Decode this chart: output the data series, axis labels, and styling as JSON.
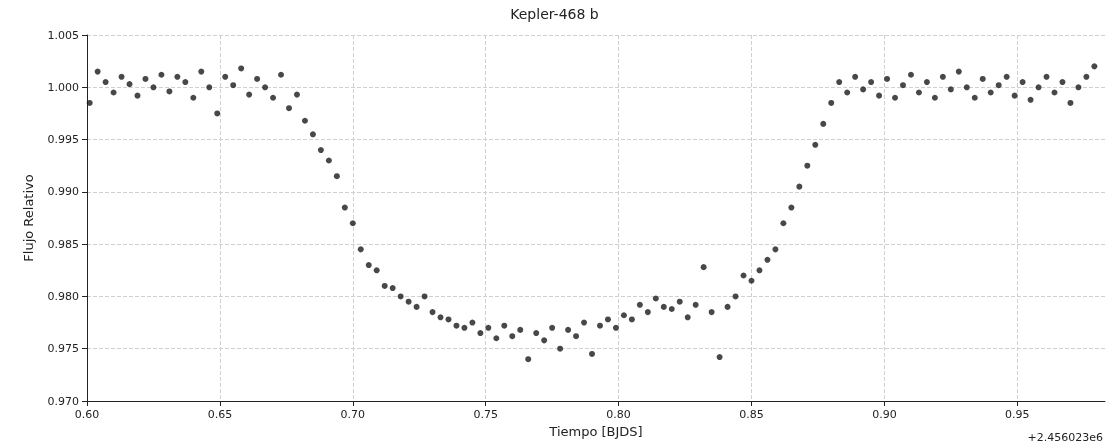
{
  "chart_data": {
    "type": "scatter",
    "title": "Kepler-468 b",
    "xlabel": "Tiempo [BJDS]",
    "ylabel": "Flujo Relativo",
    "annotations": [
      "+2.456023e6"
    ],
    "x": [
      0.601,
      0.604,
      0.607,
      0.61,
      0.613,
      0.616,
      0.619,
      0.622,
      0.625,
      0.628,
      0.631,
      0.634,
      0.637,
      0.64,
      0.643,
      0.646,
      0.649,
      0.652,
      0.655,
      0.658,
      0.661,
      0.664,
      0.667,
      0.67,
      0.673,
      0.676,
      0.679,
      0.682,
      0.685,
      0.688,
      0.691,
      0.694,
      0.697,
      0.7,
      0.703,
      0.706,
      0.709,
      0.712,
      0.715,
      0.718,
      0.721,
      0.724,
      0.727,
      0.73,
      0.733,
      0.736,
      0.739,
      0.742,
      0.745,
      0.748,
      0.751,
      0.754,
      0.757,
      0.76,
      0.763,
      0.766,
      0.769,
      0.772,
      0.775,
      0.778,
      0.781,
      0.784,
      0.787,
      0.79,
      0.793,
      0.796,
      0.799,
      0.802,
      0.805,
      0.808,
      0.811,
      0.814,
      0.817,
      0.82,
      0.823,
      0.826,
      0.829,
      0.832,
      0.835,
      0.838,
      0.841,
      0.844,
      0.847,
      0.85,
      0.853,
      0.856,
      0.859,
      0.862,
      0.865,
      0.868,
      0.871,
      0.874,
      0.877,
      0.88,
      0.883,
      0.886,
      0.889,
      0.892,
      0.895,
      0.898,
      0.901,
      0.904,
      0.907,
      0.91,
      0.913,
      0.916,
      0.919,
      0.922,
      0.925,
      0.928,
      0.931,
      0.934,
      0.937,
      0.94,
      0.943,
      0.946,
      0.949,
      0.952,
      0.955,
      0.958,
      0.961,
      0.964,
      0.967,
      0.97,
      0.973,
      0.976,
      0.979
    ],
    "series": [
      {
        "color": "#1a1a1a",
        "values": [
          0.9985,
          1.0015,
          1.0005,
          0.9995,
          1.001,
          1.0003,
          0.9992,
          1.0008,
          1.0,
          1.0012,
          0.9996,
          1.001,
          1.0005,
          0.999,
          1.0015,
          1.0,
          0.9975,
          1.001,
          1.0002,
          1.0018,
          0.9993,
          1.0008,
          1.0,
          0.999,
          1.0012,
          0.998,
          0.9993,
          0.9968,
          0.9955,
          0.994,
          0.993,
          0.9915,
          0.9885,
          0.987,
          0.9845,
          0.983,
          0.9825,
          0.981,
          0.9808,
          0.98,
          0.9795,
          0.979,
          0.98,
          0.9785,
          0.978,
          0.9778,
          0.9772,
          0.977,
          0.9775,
          0.9765,
          0.977,
          0.976,
          0.9772,
          0.9762,
          0.9768,
          0.974,
          0.9765,
          0.9758,
          0.977,
          0.975,
          0.9768,
          0.9762,
          0.9775,
          0.9745,
          0.9772,
          0.9778,
          0.977,
          0.9782,
          0.9778,
          0.9792,
          0.9785,
          0.9798,
          0.979,
          0.9788,
          0.9795,
          0.978,
          0.9792,
          0.9828,
          0.9785,
          0.9742,
          0.979,
          0.98,
          0.982,
          0.9815,
          0.9825,
          0.9835,
          0.9845,
          0.987,
          0.9885,
          0.9905,
          0.9925,
          0.9945,
          0.9965,
          0.9985,
          1.0005,
          0.9995,
          1.001,
          0.9998,
          1.0005,
          0.9992,
          1.0008,
          0.999,
          1.0002,
          1.0012,
          0.9995,
          1.0005,
          0.999,
          1.001,
          0.9998,
          1.0015,
          1.0,
          0.999,
          1.0008,
          0.9995,
          1.0002,
          1.001,
          0.9992,
          1.0005,
          0.9988,
          1.0,
          1.001,
          0.9995,
          1.0005,
          0.9985,
          1.0,
          1.001,
          1.002
        ]
      }
    ],
    "xlim": [
      0.6,
      0.983
    ],
    "xticks": [
      {
        "value": 0.6,
        "label": "0.60"
      },
      {
        "value": 0.65,
        "label": "0.65"
      },
      {
        "value": 0.7,
        "label": "0.70"
      },
      {
        "value": 0.75,
        "label": "0.75"
      },
      {
        "value": 0.8,
        "label": "0.80"
      },
      {
        "value": 0.85,
        "label": "0.85"
      },
      {
        "value": 0.9,
        "label": "0.90"
      },
      {
        "value": 0.95,
        "label": "0.95"
      }
    ],
    "ylim": [
      0.97,
      1.005
    ],
    "yticks": [
      {
        "value": 0.97,
        "label": "0.970"
      },
      {
        "value": 0.975,
        "label": "0.975"
      },
      {
        "value": 0.98,
        "label": "0.980"
      },
      {
        "value": 0.985,
        "label": "0.985"
      },
      {
        "value": 0.99,
        "label": "0.990"
      },
      {
        "value": 0.995,
        "label": "0.995"
      },
      {
        "value": 1.0,
        "label": "1.000"
      },
      {
        "value": 1.005,
        "label": "1.005"
      }
    ],
    "grid": true,
    "marker": "circle"
  }
}
